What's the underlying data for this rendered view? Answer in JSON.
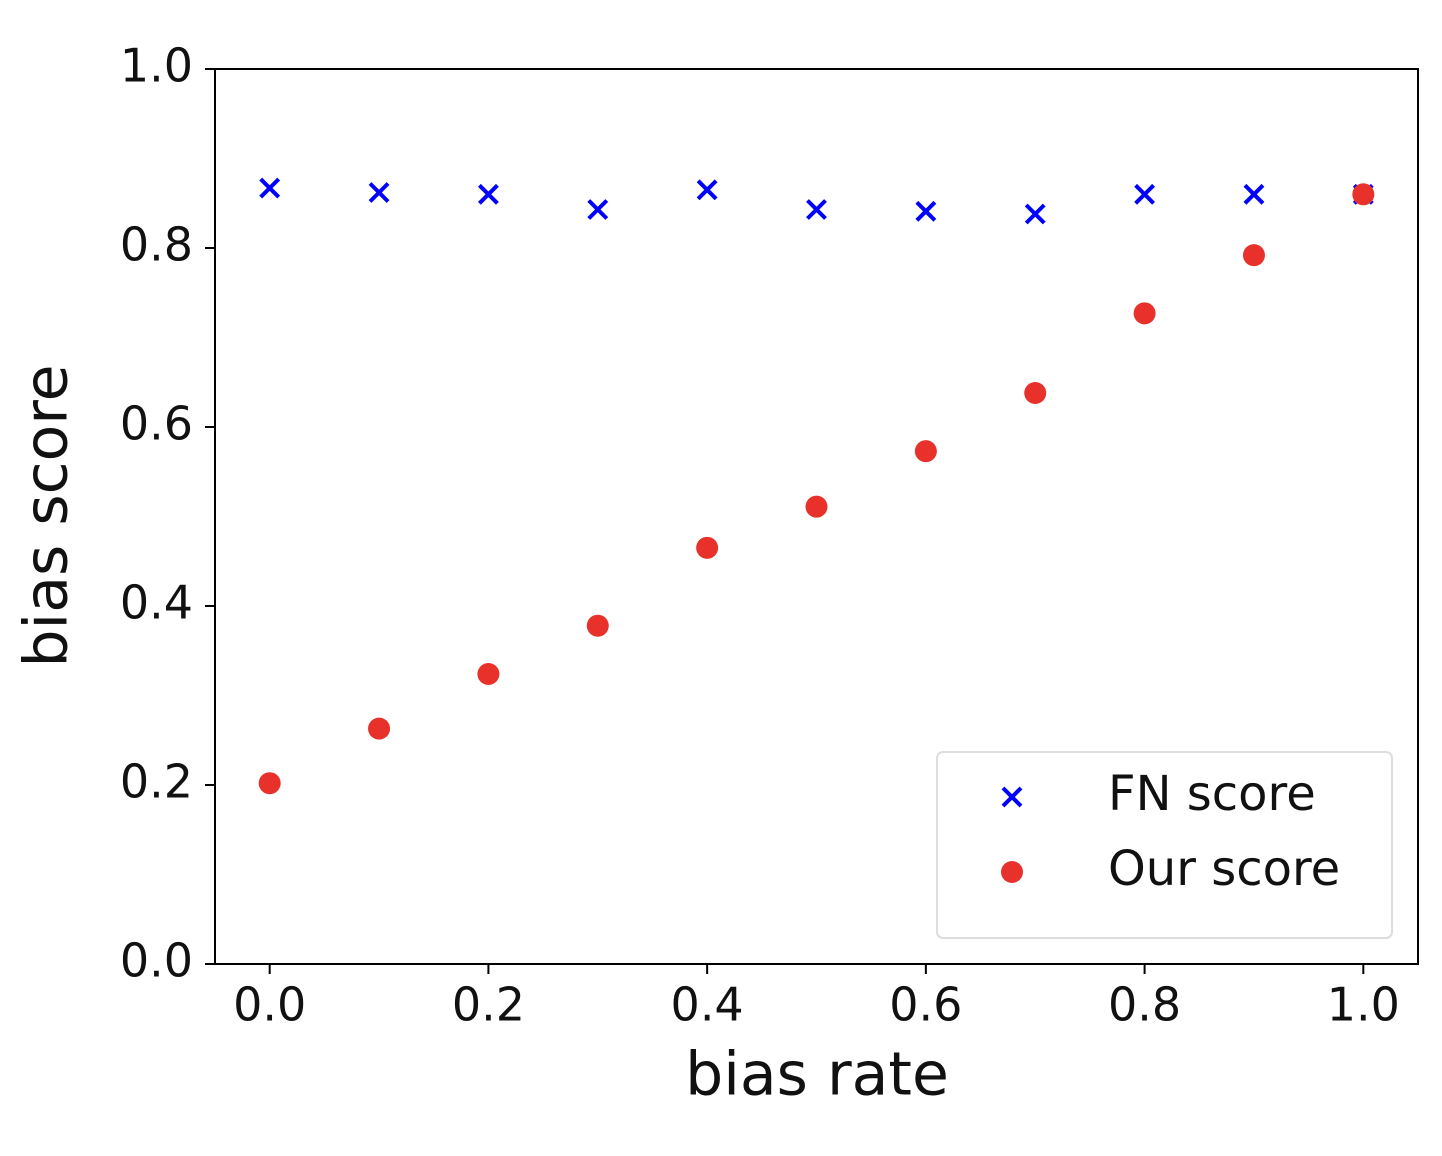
{
  "chart_data": {
    "type": "scatter",
    "xlabel": "bias rate",
    "ylabel": "bias score",
    "xlim": [
      -0.05,
      1.05
    ],
    "ylim": [
      0,
      1
    ],
    "xticks": [
      {
        "value": 0,
        "label": "0.0"
      },
      0.2,
      0.4,
      0.6,
      0.8,
      {
        "value": 1,
        "label": "1.0"
      }
    ],
    "yticks": [
      {
        "value": 0,
        "label": "0.0"
      },
      0.2,
      0.4,
      0.6,
      0.8,
      {
        "value": 1,
        "label": "1.0"
      }
    ],
    "legend": "lower right",
    "series": [
      {
        "name": "FN score",
        "color": "#0000ff",
        "marker": "x",
        "x": [
          0,
          0.1,
          0.2,
          0.3,
          0.4,
          0.5,
          0.6,
          0.7,
          0.8,
          0.9,
          1.0
        ],
        "values": [
          0.867,
          0.862,
          0.86,
          0.843,
          0.865,
          0.843,
          0.841,
          0.838,
          0.86,
          0.86,
          0.86
        ]
      },
      {
        "name": "Our score",
        "color": "#e8312a",
        "marker": "o",
        "x": [
          0,
          0.1,
          0.2,
          0.3,
          0.4,
          0.5,
          0.6,
          0.7,
          0.8,
          0.9,
          1.0
        ],
        "values": [
          0.202,
          0.263,
          0.324,
          0.378,
          0.465,
          0.511,
          0.573,
          0.638,
          0.727,
          0.792,
          0.86
        ]
      }
    ]
  }
}
